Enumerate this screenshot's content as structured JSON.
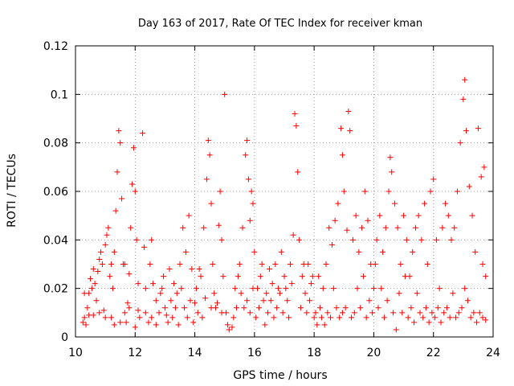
{
  "chart_data": {
    "type": "scatter",
    "title": "Day 163 of 2017, Rate Of TEC Index for receiver kman",
    "xlabel": "GPS time / hours",
    "ylabel": "ROTI / TECUs",
    "xlim": [
      10,
      24
    ],
    "ylim": [
      0,
      0.12
    ],
    "xticks": [
      10,
      12,
      14,
      16,
      18,
      20,
      22,
      24
    ],
    "xtick_labels": [
      "10",
      "12",
      "14",
      "16",
      "18",
      "20",
      "22",
      "24"
    ],
    "yticks": [
      0,
      0.02,
      0.04,
      0.06,
      0.08,
      0.1,
      0.12
    ],
    "ytick_labels": [
      "0",
      "0.02",
      "0.04",
      "0.06",
      "0.08",
      "0.1",
      "0.12"
    ],
    "grid": true,
    "marker": "+",
    "color": "#ff0000",
    "series": [
      {
        "points": [
          [
            10.25,
            0.006
          ],
          [
            10.3,
            0.008
          ],
          [
            10.35,
            0.005
          ],
          [
            10.4,
            0.012
          ],
          [
            10.45,
            0.018
          ],
          [
            10.5,
            0.024
          ],
          [
            10.55,
            0.02
          ],
          [
            10.6,
            0.009
          ],
          [
            10.65,
            0.022
          ],
          [
            10.7,
            0.015
          ],
          [
            10.75,
            0.027
          ],
          [
            10.8,
            0.032
          ],
          [
            10.85,
            0.035
          ],
          [
            10.9,
            0.03
          ],
          [
            10.95,
            0.011
          ],
          [
            11.0,
            0.038
          ],
          [
            11.05,
            0.042
          ],
          [
            11.1,
            0.045
          ],
          [
            11.15,
            0.025
          ],
          [
            11.2,
            0.008
          ],
          [
            11.25,
            0.02
          ],
          [
            11.3,
            0.035
          ],
          [
            11.35,
            0.052
          ],
          [
            11.4,
            0.068
          ],
          [
            11.45,
            0.085
          ],
          [
            11.5,
            0.08
          ],
          [
            11.55,
            0.057
          ],
          [
            11.6,
            0.03
          ],
          [
            11.65,
            0.01
          ],
          [
            11.7,
            0.006
          ],
          [
            11.75,
            0.014
          ],
          [
            11.8,
            0.026
          ],
          [
            11.85,
            0.045
          ],
          [
            11.9,
            0.063
          ],
          [
            11.95,
            0.078
          ],
          [
            12.0,
            0.06
          ],
          [
            12.05,
            0.04
          ],
          [
            12.1,
            0.022
          ],
          [
            12.15,
            0.008
          ],
          [
            12.25,
            0.084
          ],
          [
            12.3,
            0.037
          ],
          [
            12.35,
            0.01
          ],
          [
            12.45,
            0.006
          ],
          [
            12.5,
            0.03
          ],
          [
            12.55,
            0.04
          ],
          [
            12.6,
            0.022
          ],
          [
            12.7,
            0.015
          ],
          [
            12.8,
            0.01
          ],
          [
            12.9,
            0.02
          ],
          [
            13.0,
            0.012
          ],
          [
            13.1,
            0.006
          ],
          [
            13.2,
            0.015
          ],
          [
            13.3,
            0.022
          ],
          [
            13.4,
            0.018
          ],
          [
            13.5,
            0.03
          ],
          [
            13.6,
            0.045
          ],
          [
            13.7,
            0.035
          ],
          [
            13.8,
            0.05
          ],
          [
            13.9,
            0.028
          ],
          [
            14.0,
            0.014
          ],
          [
            14.1,
            0.01
          ],
          [
            14.2,
            0.025
          ],
          [
            14.3,
            0.045
          ],
          [
            14.4,
            0.065
          ],
          [
            14.45,
            0.081
          ],
          [
            14.5,
            0.075
          ],
          [
            14.55,
            0.055
          ],
          [
            14.6,
            0.03
          ],
          [
            14.7,
            0.012
          ],
          [
            14.8,
            0.046
          ],
          [
            14.85,
            0.06
          ],
          [
            14.9,
            0.04
          ],
          [
            14.95,
            0.025
          ],
          [
            15.0,
            0.1
          ],
          [
            15.05,
            0.01
          ],
          [
            15.1,
            0.005
          ],
          [
            15.15,
            0.003
          ],
          [
            15.25,
            0.004
          ],
          [
            15.3,
            0.008
          ],
          [
            15.4,
            0.012
          ],
          [
            15.5,
            0.03
          ],
          [
            15.6,
            0.045
          ],
          [
            15.7,
            0.075
          ],
          [
            15.75,
            0.081
          ],
          [
            15.8,
            0.065
          ],
          [
            15.85,
            0.048
          ],
          [
            15.9,
            0.06
          ],
          [
            15.95,
            0.055
          ],
          [
            16.0,
            0.035
          ],
          [
            16.1,
            0.02
          ],
          [
            16.2,
            0.025
          ],
          [
            16.3,
            0.015
          ],
          [
            16.4,
            0.018
          ],
          [
            16.5,
            0.028
          ],
          [
            16.6,
            0.022
          ],
          [
            16.7,
            0.03
          ],
          [
            16.8,
            0.02
          ],
          [
            16.9,
            0.035
          ],
          [
            17.0,
            0.025
          ],
          [
            17.1,
            0.015
          ],
          [
            17.2,
            0.03
          ],
          [
            17.3,
            0.042
          ],
          [
            17.35,
            0.092
          ],
          [
            17.4,
            0.087
          ],
          [
            17.45,
            0.068
          ],
          [
            17.5,
            0.04
          ],
          [
            17.6,
            0.025
          ],
          [
            17.7,
            0.018
          ],
          [
            17.8,
            0.03
          ],
          [
            17.9,
            0.022
          ],
          [
            18.0,
            0.008
          ],
          [
            18.1,
            0.005
          ],
          [
            18.2,
            0.012
          ],
          [
            18.3,
            0.02
          ],
          [
            18.4,
            0.03
          ],
          [
            18.5,
            0.045
          ],
          [
            18.6,
            0.038
          ],
          [
            18.7,
            0.048
          ],
          [
            18.8,
            0.055
          ],
          [
            18.9,
            0.086
          ],
          [
            18.95,
            0.075
          ],
          [
            19.0,
            0.06
          ],
          [
            19.1,
            0.044
          ],
          [
            19.15,
            0.093
          ],
          [
            19.2,
            0.085
          ],
          [
            19.3,
            0.04
          ],
          [
            19.4,
            0.05
          ],
          [
            19.5,
            0.035
          ],
          [
            19.6,
            0.045
          ],
          [
            19.7,
            0.06
          ],
          [
            19.8,
            0.048
          ],
          [
            19.9,
            0.03
          ],
          [
            20.0,
            0.02
          ],
          [
            20.1,
            0.04
          ],
          [
            20.2,
            0.05
          ],
          [
            20.3,
            0.035
          ],
          [
            20.4,
            0.045
          ],
          [
            20.5,
            0.06
          ],
          [
            20.55,
            0.074
          ],
          [
            20.6,
            0.068
          ],
          [
            20.7,
            0.055
          ],
          [
            20.8,
            0.045
          ],
          [
            20.9,
            0.03
          ],
          [
            21.0,
            0.05
          ],
          [
            21.1,
            0.04
          ],
          [
            21.2,
            0.025
          ],
          [
            21.3,
            0.035
          ],
          [
            21.4,
            0.045
          ],
          [
            21.5,
            0.05
          ],
          [
            21.6,
            0.04
          ],
          [
            21.7,
            0.055
          ],
          [
            21.8,
            0.03
          ],
          [
            21.9,
            0.06
          ],
          [
            22.0,
            0.065
          ],
          [
            22.1,
            0.04
          ],
          [
            22.2,
            0.02
          ],
          [
            22.3,
            0.045
          ],
          [
            22.4,
            0.055
          ],
          [
            22.5,
            0.05
          ],
          [
            22.6,
            0.04
          ],
          [
            22.7,
            0.045
          ],
          [
            22.8,
            0.06
          ],
          [
            22.9,
            0.08
          ],
          [
            23.0,
            0.098
          ],
          [
            23.05,
            0.106
          ],
          [
            23.1,
            0.085
          ],
          [
            23.2,
            0.062
          ],
          [
            23.3,
            0.05
          ],
          [
            23.4,
            0.035
          ],
          [
            23.5,
            0.086
          ],
          [
            23.6,
            0.066
          ],
          [
            23.65,
            0.03
          ],
          [
            23.7,
            0.07
          ],
          [
            23.75,
            0.025
          ],
          [
            10.3,
            0.018
          ],
          [
            10.45,
            0.009
          ],
          [
            10.6,
            0.028
          ],
          [
            10.8,
            0.01
          ],
          [
            11.0,
            0.008
          ],
          [
            11.2,
            0.03
          ],
          [
            11.3,
            0.005
          ],
          [
            11.5,
            0.006
          ],
          [
            11.65,
            0.03
          ],
          [
            11.8,
            0.012
          ],
          [
            12.0,
            0.004
          ],
          [
            12.1,
            0.011
          ],
          [
            12.35,
            0.02
          ],
          [
            12.55,
            0.008
          ],
          [
            12.7,
            0.005
          ],
          [
            12.85,
            0.018
          ],
          [
            12.95,
            0.025
          ],
          [
            13.05,
            0.009
          ],
          [
            13.15,
            0.028
          ],
          [
            13.25,
            0.008
          ],
          [
            13.35,
            0.012
          ],
          [
            13.45,
            0.005
          ],
          [
            13.55,
            0.02
          ],
          [
            13.65,
            0.012
          ],
          [
            13.75,
            0.008
          ],
          [
            13.85,
            0.015
          ],
          [
            13.95,
            0.006
          ],
          [
            14.05,
            0.02
          ],
          [
            14.15,
            0.028
          ],
          [
            14.25,
            0.008
          ],
          [
            14.35,
            0.016
          ],
          [
            14.55,
            0.012
          ],
          [
            14.65,
            0.018
          ],
          [
            14.75,
            0.014
          ],
          [
            14.9,
            0.01
          ],
          [
            15.35,
            0.02
          ],
          [
            15.45,
            0.025
          ],
          [
            15.55,
            0.018
          ],
          [
            15.65,
            0.012
          ],
          [
            15.75,
            0.015
          ],
          [
            15.85,
            0.01
          ],
          [
            15.95,
            0.02
          ],
          [
            16.05,
            0.008
          ],
          [
            16.15,
            0.012
          ],
          [
            16.25,
            0.03
          ],
          [
            16.35,
            0.005
          ],
          [
            16.45,
            0.01
          ],
          [
            16.55,
            0.015
          ],
          [
            16.65,
            0.008
          ],
          [
            16.75,
            0.012
          ],
          [
            16.85,
            0.018
          ],
          [
            16.95,
            0.01
          ],
          [
            17.05,
            0.02
          ],
          [
            17.15,
            0.008
          ],
          [
            17.25,
            0.022
          ],
          [
            17.55,
            0.012
          ],
          [
            17.65,
            0.03
          ],
          [
            17.75,
            0.01
          ],
          [
            17.85,
            0.015
          ],
          [
            17.95,
            0.025
          ],
          [
            18.05,
            0.01
          ],
          [
            18.15,
            0.025
          ],
          [
            18.25,
            0.008
          ],
          [
            18.35,
            0.005
          ],
          [
            18.45,
            0.01
          ],
          [
            18.55,
            0.008
          ],
          [
            18.65,
            0.02
          ],
          [
            18.75,
            0.012
          ],
          [
            18.85,
            0.008
          ],
          [
            18.95,
            0.01
          ],
          [
            19.05,
            0.012
          ],
          [
            19.25,
            0.008
          ],
          [
            19.35,
            0.01
          ],
          [
            19.45,
            0.02
          ],
          [
            19.55,
            0.012
          ],
          [
            19.65,
            0.025
          ],
          [
            19.75,
            0.008
          ],
          [
            19.85,
            0.015
          ],
          [
            19.95,
            0.01
          ],
          [
            20.05,
            0.03
          ],
          [
            20.15,
            0.012
          ],
          [
            20.25,
            0.02
          ],
          [
            20.35,
            0.008
          ],
          [
            20.45,
            0.015
          ],
          [
            20.65,
            0.01
          ],
          [
            20.75,
            0.003
          ],
          [
            20.85,
            0.018
          ],
          [
            20.95,
            0.01
          ],
          [
            21.05,
            0.025
          ],
          [
            21.15,
            0.008
          ],
          [
            21.25,
            0.012
          ],
          [
            21.35,
            0.006
          ],
          [
            21.45,
            0.018
          ],
          [
            21.55,
            0.01
          ],
          [
            21.65,
            0.008
          ],
          [
            21.75,
            0.012
          ],
          [
            21.85,
            0.006
          ],
          [
            21.95,
            0.01
          ],
          [
            22.05,
            0.008
          ],
          [
            22.15,
            0.012
          ],
          [
            22.25,
            0.006
          ],
          [
            22.35,
            0.01
          ],
          [
            22.45,
            0.012
          ],
          [
            22.55,
            0.008
          ],
          [
            22.65,
            0.018
          ],
          [
            22.75,
            0.008
          ],
          [
            22.85,
            0.01
          ],
          [
            22.95,
            0.012
          ],
          [
            23.05,
            0.02
          ],
          [
            23.15,
            0.015
          ],
          [
            23.25,
            0.008
          ],
          [
            23.35,
            0.01
          ],
          [
            23.45,
            0.006
          ],
          [
            23.55,
            0.01
          ],
          [
            23.65,
            0.008
          ],
          [
            23.75,
            0.007
          ]
        ]
      }
    ]
  }
}
